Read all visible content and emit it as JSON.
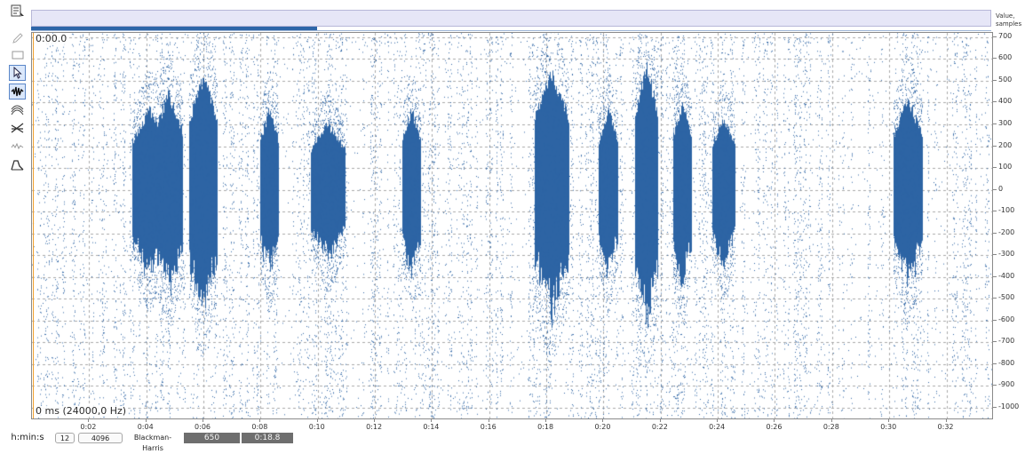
{
  "toolbar": {
    "items": [
      {
        "name": "properties-icon",
        "active": false
      },
      {
        "name": "pencil-icon",
        "active": false
      },
      {
        "name": "rectangle-icon",
        "active": false
      },
      {
        "name": "select-cursor-icon",
        "active": true
      },
      {
        "name": "waveform-view-icon",
        "active": true
      },
      {
        "name": "spectrogram-view-icon",
        "active": false
      },
      {
        "name": "level-view-icon",
        "active": false
      },
      {
        "name": "noise-view-icon",
        "active": false
      },
      {
        "name": "envelope-view-icon",
        "active": false
      }
    ]
  },
  "overview": {
    "position_fraction": 0.298
  },
  "plot": {
    "cursor_time_label": "0:00.0",
    "info_label": "0 ms (24000,0 Hz)",
    "waveform_color": "#2d64a4",
    "cursor_color": "#f0a030"
  },
  "right_scale": {
    "unit_label": "Value, samples",
    "ticks": [
      "700",
      "600",
      "500",
      "400",
      "300",
      "200",
      "100",
      "0",
      "-100",
      "-200",
      "-300",
      "-400",
      "-500",
      "-600",
      "-700",
      "-800",
      "-900",
      "-1000"
    ],
    "range": [
      -1050,
      720
    ]
  },
  "time_axis": {
    "ticks": [
      "0:02",
      "0:04",
      "0:06",
      "0:08",
      "0:10",
      "0:12",
      "0:14",
      "0:16",
      "0:18",
      "0:20",
      "0:22",
      "0:24",
      "0:26",
      "0:28",
      "0:30",
      "0:32"
    ],
    "start_seconds": 0,
    "end_seconds": 33.6
  },
  "status_bar": {
    "time_format": "h:min:s",
    "fft_order": "12",
    "fft_size": "4096",
    "window": "Blackman-Harris",
    "value": "650",
    "time": "0:18.8"
  }
}
